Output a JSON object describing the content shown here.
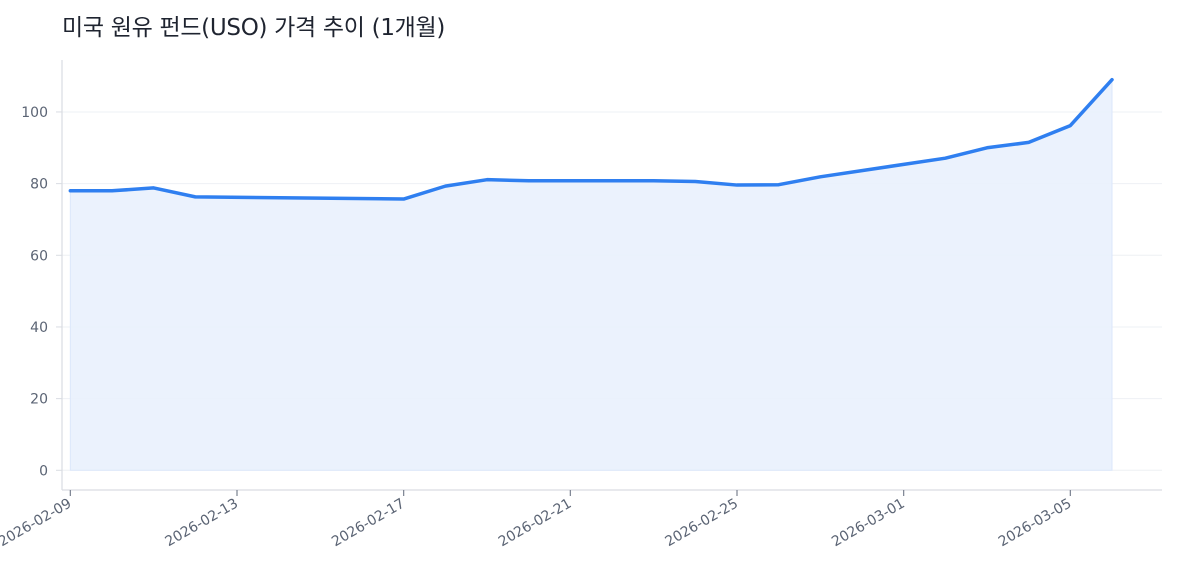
{
  "chart_data": {
    "type": "area",
    "title": "미국 원유 펀드(USO) 가격 추이 (1개월)",
    "xlabel": "",
    "ylabel": "",
    "x": [
      "2026-02-09",
      "2026-02-10",
      "2026-02-11",
      "2026-02-12",
      "2026-02-17",
      "2026-02-18",
      "2026-02-19",
      "2026-02-20",
      "2026-02-23",
      "2026-02-24",
      "2026-02-25",
      "2026-02-26",
      "2026-02-27",
      "2026-03-02",
      "2026-03-03",
      "2026-03-04",
      "2026-03-05",
      "2026-03-06"
    ],
    "series": [
      {
        "values": [
          78.0,
          78.0,
          78.8,
          76.3,
          75.7,
          79.3,
          81.1,
          80.8,
          80.8,
          80.6,
          79.6,
          79.7,
          81.9,
          87.1,
          90.0,
          91.5,
          96.2,
          109.0
        ]
      }
    ],
    "xticks": [
      "2026-02-09",
      "2026-02-13",
      "2026-02-17",
      "2026-02-21",
      "2026-02-25",
      "2026-03-01",
      "2026-03-05"
    ],
    "yticks": [
      0,
      20,
      40,
      60,
      80,
      100
    ],
    "xlim": [
      "2026-02-08T19:12",
      "2026-03-07T04:48"
    ],
    "ylim": [
      -5.5,
      114.5
    ],
    "grid": "horizontal",
    "colors": {
      "line": "#2f7ff0",
      "fill": "#e9f1fd",
      "grid": "#eef0f4",
      "axis": "#d9dce2",
      "tick_text": "#5b6474"
    }
  }
}
